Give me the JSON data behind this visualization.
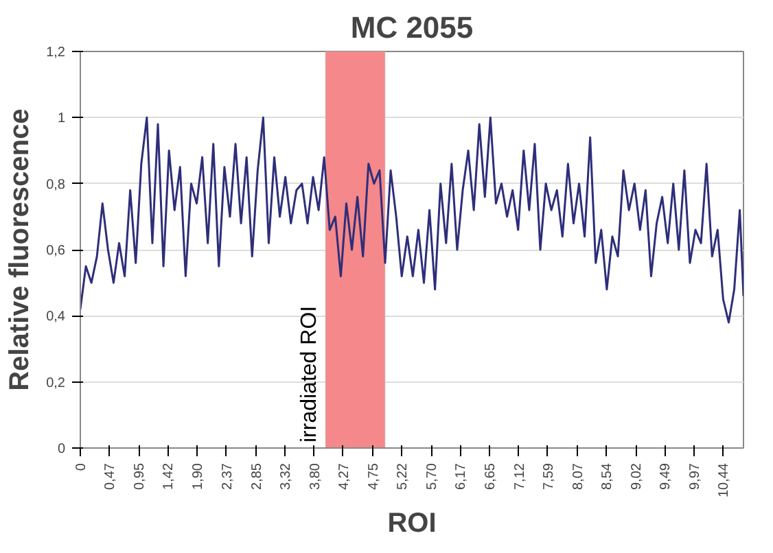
{
  "chart_data": {
    "type": "line",
    "title": "MC 2055",
    "xlabel": "ROI",
    "ylabel": "Relative fluorescence",
    "x": [
      0,
      0.09,
      0.18,
      0.27,
      0.36,
      0.45,
      0.54,
      0.63,
      0.72,
      0.81,
      0.9,
      0.99,
      1.08,
      1.17,
      1.26,
      1.35,
      1.44,
      1.53,
      1.62,
      1.71,
      1.8,
      1.89,
      1.98,
      2.07,
      2.16,
      2.25,
      2.34,
      2.43,
      2.52,
      2.61,
      2.7,
      2.79,
      2.88,
      2.97,
      3.06,
      3.15,
      3.24,
      3.33,
      3.42,
      3.51,
      3.6,
      3.69,
      3.78,
      3.87,
      3.96,
      4.05,
      4.14,
      4.23,
      4.32,
      4.41,
      4.5,
      4.59,
      4.68,
      4.77,
      4.86,
      4.95,
      5.04,
      5.13,
      5.22,
      5.31,
      5.4,
      5.49,
      5.58,
      5.67,
      5.76,
      5.85,
      5.94,
      6.03,
      6.12,
      6.21,
      6.3,
      6.39,
      6.48,
      6.57,
      6.66,
      6.75,
      6.84,
      6.93,
      7.02,
      7.11,
      7.2,
      7.29,
      7.38,
      7.47,
      7.56,
      7.65,
      7.74,
      7.83,
      7.92,
      8.01,
      8.1,
      8.19,
      8.28,
      8.37,
      8.46,
      8.55,
      8.64,
      8.73,
      8.82,
      8.91,
      9.0,
      9.09,
      9.18,
      9.27,
      9.36,
      9.45,
      9.54,
      9.63,
      9.72,
      9.81,
      9.9,
      9.99,
      10.08,
      10.17,
      10.26,
      10.35,
      10.44,
      10.53,
      10.62,
      10.71,
      10.77
    ],
    "series": [
      {
        "color": "#2e2e7a",
        "values": [
          0.42,
          0.55,
          0.5,
          0.58,
          0.74,
          0.6,
          0.5,
          0.62,
          0.52,
          0.78,
          0.56,
          0.86,
          1.0,
          0.62,
          0.98,
          0.55,
          0.9,
          0.72,
          0.85,
          0.52,
          0.8,
          0.74,
          0.88,
          0.62,
          0.92,
          0.55,
          0.85,
          0.7,
          0.92,
          0.68,
          0.88,
          0.58,
          0.84,
          1.0,
          0.62,
          0.88,
          0.7,
          0.82,
          0.68,
          0.78,
          0.8,
          0.68,
          0.82,
          0.72,
          0.88,
          0.66,
          0.7,
          0.52,
          0.74,
          0.6,
          0.76,
          0.58,
          0.86,
          0.8,
          0.84,
          0.56,
          0.84,
          0.7,
          0.52,
          0.64,
          0.52,
          0.66,
          0.5,
          0.72,
          0.48,
          0.8,
          0.62,
          0.86,
          0.6,
          0.78,
          0.9,
          0.72,
          0.98,
          0.76,
          1.0,
          0.74,
          0.8,
          0.7,
          0.78,
          0.66,
          0.9,
          0.72,
          0.92,
          0.6,
          0.8,
          0.72,
          0.78,
          0.64,
          0.86,
          0.68,
          0.8,
          0.64,
          0.94,
          0.56,
          0.66,
          0.48,
          0.64,
          0.58,
          0.84,
          0.72,
          0.8,
          0.66,
          0.78,
          0.52,
          0.68,
          0.76,
          0.62,
          0.8,
          0.6,
          0.84,
          0.56,
          0.66,
          0.62,
          0.86,
          0.58,
          0.66,
          0.45,
          0.38,
          0.48,
          0.72,
          0.46
        ]
      }
    ],
    "xlim": [
      0,
      10.77
    ],
    "ylim": [
      0,
      1.2
    ],
    "xticks": [
      0,
      {
        "value": 0.47,
        "label": "0,47"
      },
      {
        "value": 0.95,
        "label": "0,95"
      },
      {
        "value": 1.42,
        "label": "1,42"
      },
      {
        "value": 1.9,
        "label": "1,90"
      },
      {
        "value": 2.37,
        "label": "2,37"
      },
      {
        "value": 2.85,
        "label": "2,85"
      },
      {
        "value": 3.32,
        "label": "3,32"
      },
      {
        "value": 3.8,
        "label": "3,80"
      },
      {
        "value": 4.27,
        "label": "4,27"
      },
      {
        "value": 4.75,
        "label": "4,75"
      },
      {
        "value": 5.22,
        "label": "5,22"
      },
      {
        "value": 5.7,
        "label": "5,70"
      },
      {
        "value": 6.17,
        "label": "6,17"
      },
      {
        "value": 6.65,
        "label": "6,65"
      },
      {
        "value": 7.12,
        "label": "7,12"
      },
      {
        "value": 7.59,
        "label": "7,59"
      },
      {
        "value": 8.07,
        "label": "8,07"
      },
      {
        "value": 8.54,
        "label": "8,54"
      },
      {
        "value": 9.02,
        "label": "9,02"
      },
      {
        "value": 9.49,
        "label": "9,49"
      },
      {
        "value": 9.97,
        "label": "9,97"
      },
      {
        "value": 10.44,
        "label": "10,44"
      }
    ],
    "yticks": [
      0,
      {
        "value": 0.2,
        "label": "0,2"
      },
      {
        "value": 0.4,
        "label": "0,4"
      },
      {
        "value": 0.6,
        "label": "0,6"
      },
      {
        "value": 0.8,
        "label": "0,8"
      },
      1,
      {
        "value": 1.2,
        "label": "1,2"
      }
    ],
    "bands": [
      {
        "axis": "x",
        "from": 3.98,
        "to": 4.95,
        "label": "irradiated ROI",
        "color": "#f4888a"
      }
    ],
    "grid": "y",
    "marker": "none",
    "line_style": "solid"
  }
}
